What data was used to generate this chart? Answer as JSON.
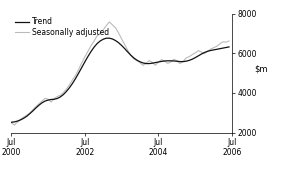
{
  "ylim": [
    2000,
    8000
  ],
  "yticks": [
    2000,
    4000,
    6000,
    8000
  ],
  "xlim_months": 72,
  "xtick_positions": [
    0,
    24,
    48,
    72
  ],
  "xtick_labels": [
    "Jul\n2000",
    "Jul\n2002",
    "Jul\n2004",
    "Jul\n2006"
  ],
  "legend_entries": [
    "Trend",
    "Seasonally adjusted"
  ],
  "trend_color": "#111111",
  "seasonal_color": "#bbbbbb",
  "background_color": "#ffffff",
  "trend_data": [
    2520,
    2540,
    2580,
    2640,
    2720,
    2820,
    2950,
    3090,
    3240,
    3380,
    3500,
    3590,
    3640,
    3670,
    3680,
    3720,
    3800,
    3920,
    4080,
    4270,
    4490,
    4740,
    5010,
    5290,
    5570,
    5840,
    6090,
    6310,
    6490,
    6620,
    6710,
    6760,
    6760,
    6720,
    6640,
    6530,
    6390,
    6230,
    6060,
    5900,
    5760,
    5650,
    5570,
    5510,
    5480,
    5480,
    5500,
    5530,
    5560,
    5590,
    5610,
    5620,
    5620,
    5610,
    5600,
    5580,
    5580,
    5600,
    5640,
    5700,
    5780,
    5870,
    5960,
    6040,
    6100,
    6140,
    6170,
    6200,
    6230,
    6260,
    6290,
    6320
  ],
  "seasonal_data": [
    2490,
    2380,
    2530,
    2670,
    2780,
    2870,
    2990,
    3150,
    3310,
    3450,
    3590,
    3730,
    3680,
    3540,
    3720,
    3820,
    3880,
    4020,
    4200,
    4420,
    4670,
    4900,
    5200,
    5520,
    5820,
    6100,
    6380,
    6620,
    6880,
    7020,
    7180,
    7400,
    7580,
    7430,
    7280,
    7020,
    6720,
    6430,
    6140,
    5880,
    5710,
    5620,
    5520,
    5390,
    5510,
    5630,
    5540,
    5400,
    5560,
    5680,
    5610,
    5490,
    5560,
    5700,
    5620,
    5480,
    5580,
    5760,
    5830,
    5930,
    6020,
    6130,
    6060,
    5980,
    6090,
    6210,
    6280,
    6350,
    6470,
    6580,
    6560,
    6620
  ]
}
